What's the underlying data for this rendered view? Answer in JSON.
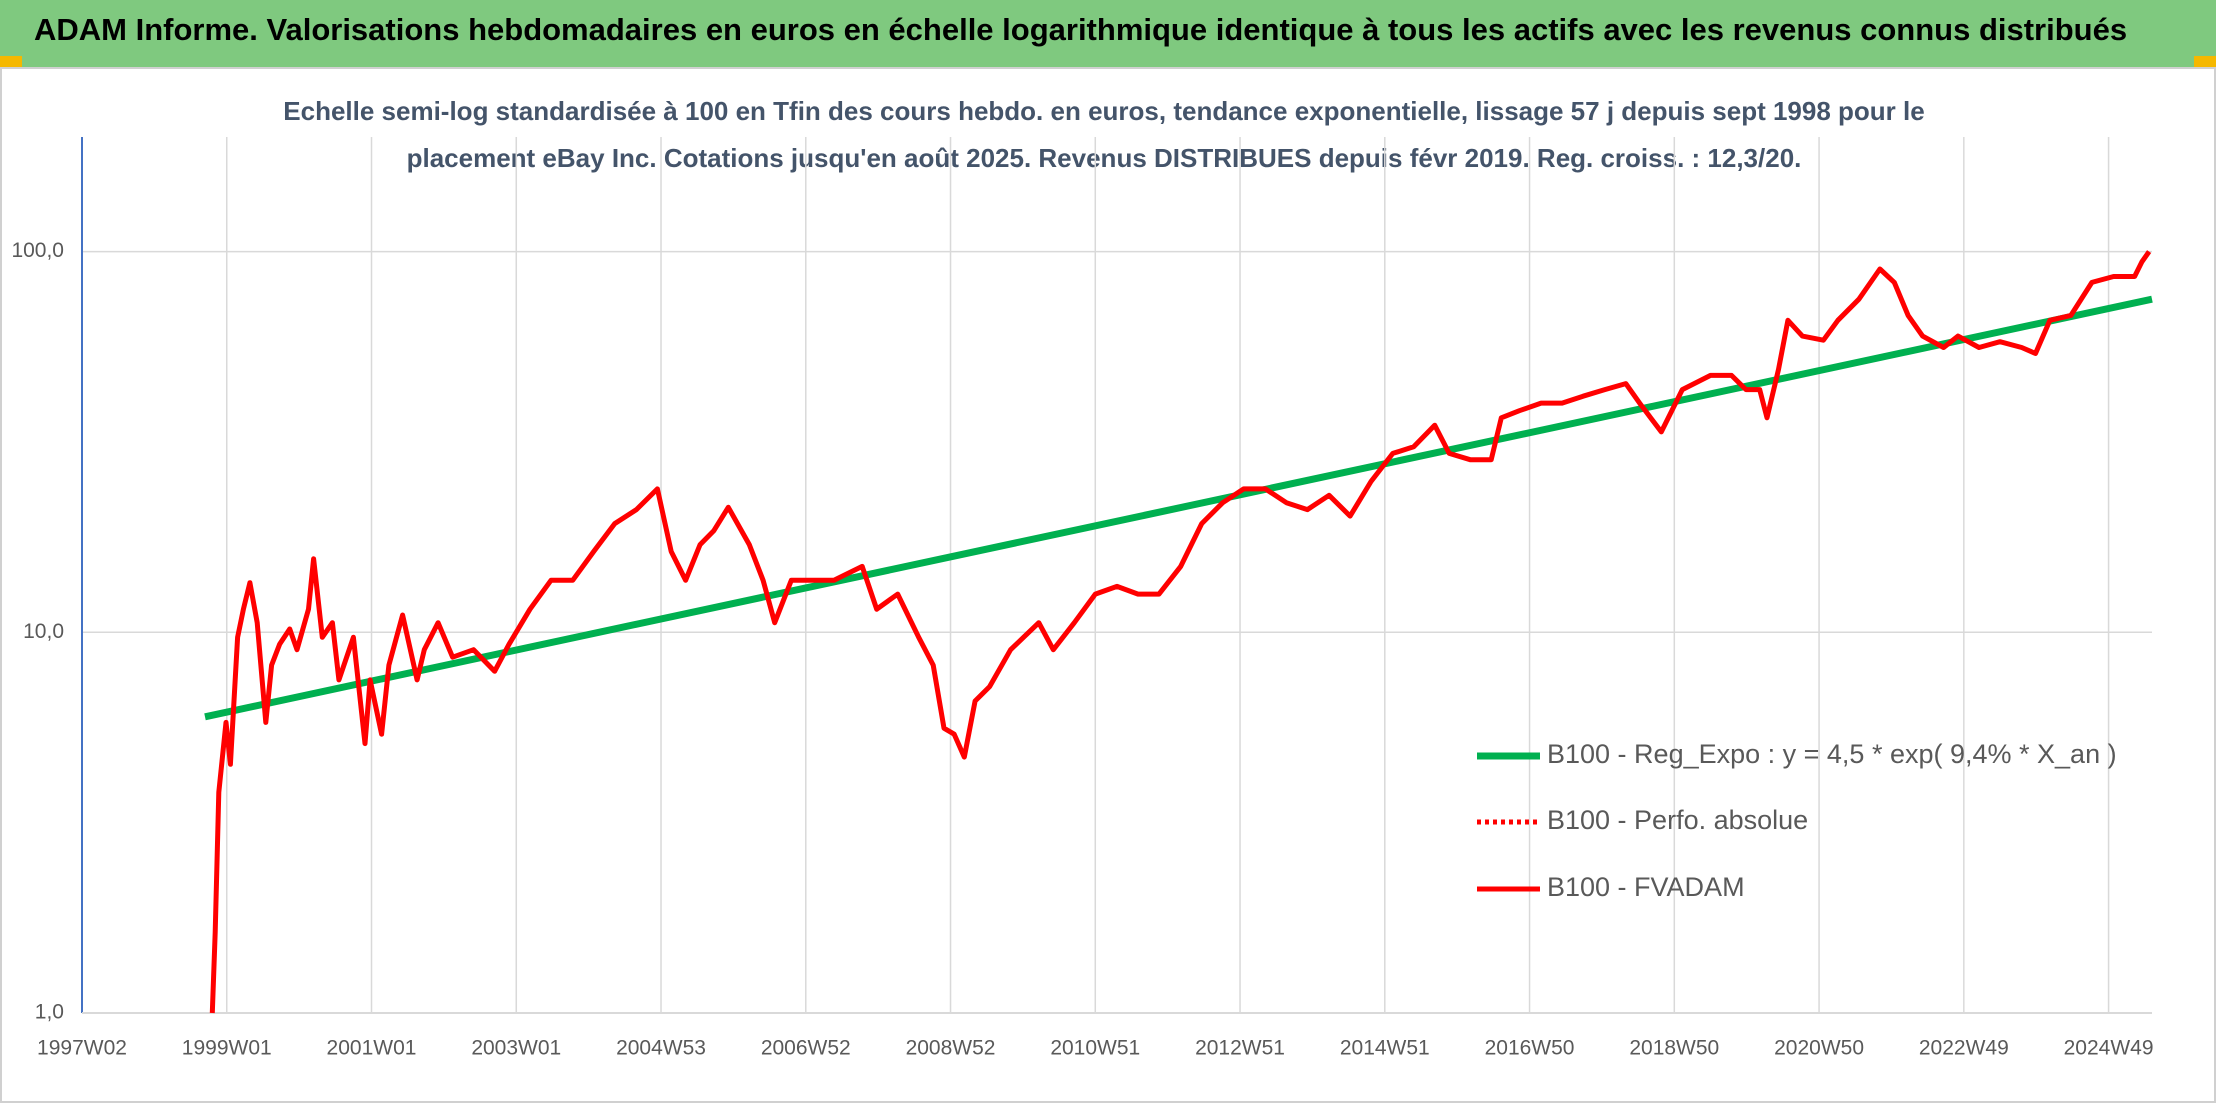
{
  "chart_data": {
    "type": "line",
    "title": "ADAM Informe. Valorisations hebdomadaires en euros en échelle logarithmique identique à tous les actifs avec les revenus connus distribués",
    "subtitle": [
      "Echelle semi-log standardisée à 100 en Tfin des cours hebdo. en euros, tendance exponentielle, lissage 57 j depuis sept 1998 pour le",
      "placement eBay Inc. Cotations jusqu'en août 2025. Revenus DISTRIBUES depuis févr 2019. Reg. croiss. : 12,3/20."
    ],
    "xlim": [
      1997.0,
      2025.6
    ],
    "xticks": [
      {
        "value": 1997.0,
        "label": "1997W02"
      },
      {
        "value": 1999.0,
        "label": "1999W01"
      },
      {
        "value": 2001.0,
        "label": "2001W01"
      },
      {
        "value": 2003.0,
        "label": "2003W01"
      },
      {
        "value": 2005.0,
        "label": "2004W53"
      },
      {
        "value": 2007.0,
        "label": "2006W52"
      },
      {
        "value": 2009.0,
        "label": "2008W52"
      },
      {
        "value": 2011.0,
        "label": "2010W51"
      },
      {
        "value": 2013.0,
        "label": "2012W51"
      },
      {
        "value": 2015.0,
        "label": "2014W51"
      },
      {
        "value": 2017.0,
        "label": "2016W50"
      },
      {
        "value": 2019.0,
        "label": "2018W50"
      },
      {
        "value": 2021.0,
        "label": "2020W50"
      },
      {
        "value": 2023.0,
        "label": "2022W49"
      },
      {
        "value": 2025.0,
        "label": "2024W49"
      }
    ],
    "ylim": [
      1,
      200
    ],
    "yticks": [
      {
        "value": 1,
        "label": "1,0"
      },
      {
        "value": 10,
        "label": "10,0"
      },
      {
        "value": 100,
        "label": "100,0"
      }
    ],
    "log_scale_y": true,
    "grid": true,
    "series": [
      {
        "name": "B100 - Reg_Expo : y = 4,5 * exp( 9,4% *  X_an )",
        "color": "#00b050",
        "line_style": "solid",
        "x": [
          1998.7,
          2025.6
        ],
        "values": [
          6.0,
          75
        ]
      },
      {
        "name": "B100 - Perfo. absolue",
        "color": "#ff0000",
        "line_style": "dotted",
        "x": [],
        "values": []
      },
      {
        "name": "B100 - FVADAM",
        "color": "#ff0000",
        "line_style": "solid",
        "x": [
          1998.8,
          1998.84,
          1998.89,
          1998.99,
          1999.05,
          1999.15,
          1999.23,
          1999.32,
          1999.42,
          1999.54,
          1999.62,
          1999.73,
          1999.87,
          1999.97,
          2000.13,
          2000.2,
          2000.32,
          2000.46,
          2000.55,
          2000.75,
          2000.91,
          2000.98,
          2001.14,
          2001.24,
          2001.43,
          2001.63,
          2001.73,
          2001.92,
          2002.12,
          2002.41,
          2002.7,
          2002.9,
          2003.19,
          2003.48,
          2003.78,
          2004.07,
          2004.36,
          2004.66,
          2004.95,
          2005.14,
          2005.34,
          2005.54,
          2005.73,
          2005.93,
          2006.22,
          2006.41,
          2006.57,
          2006.8,
          2007.1,
          2007.39,
          2007.78,
          2007.98,
          2008.27,
          2008.56,
          2008.76,
          2008.91,
          2009.05,
          2009.19,
          2009.34,
          2009.54,
          2009.83,
          2010.22,
          2010.42,
          2010.71,
          2011.0,
          2011.3,
          2011.59,
          2011.88,
          2012.18,
          2012.47,
          2012.76,
          2013.05,
          2013.35,
          2013.64,
          2013.93,
          2014.23,
          2014.52,
          2014.81,
          2015.11,
          2015.4,
          2015.69,
          2015.89,
          2016.18,
          2016.47,
          2016.61,
          2016.86,
          2017.16,
          2017.45,
          2017.74,
          2018.04,
          2018.33,
          2018.52,
          2018.82,
          2019.11,
          2019.5,
          2019.79,
          2019.99,
          2020.18,
          2020.28,
          2020.44,
          2020.57,
          2020.77,
          2021.06,
          2021.26,
          2021.55,
          2021.84,
          2022.04,
          2022.23,
          2022.43,
          2022.72,
          2022.92,
          2023.21,
          2023.5,
          2023.8,
          2023.99,
          2024.19,
          2024.48,
          2024.77,
          2025.07,
          2025.36,
          2025.46,
          2025.56
        ],
        "values": [
          1.0,
          1.63,
          3.8,
          5.8,
          4.5,
          9.7,
          11.5,
          13.5,
          10.6,
          5.8,
          8.2,
          9.3,
          10.2,
          9.0,
          11.5,
          15.6,
          9.7,
          10.6,
          7.5,
          9.7,
          5.1,
          7.5,
          5.4,
          8.2,
          11.1,
          7.5,
          9.0,
          10.6,
          8.6,
          9.0,
          7.9,
          9.3,
          11.5,
          13.7,
          13.7,
          16.3,
          19.3,
          21,
          23.8,
          16.3,
          13.7,
          17,
          18.5,
          21.3,
          17,
          13.7,
          10.6,
          13.7,
          13.7,
          13.7,
          14.9,
          11.5,
          12.6,
          9.7,
          8.2,
          5.6,
          5.4,
          4.7,
          6.6,
          7.2,
          9.0,
          10.6,
          9.0,
          10.6,
          12.6,
          13.2,
          12.6,
          12.6,
          14.9,
          19.3,
          21.9,
          23.8,
          23.8,
          21.9,
          21.0,
          22.9,
          20.2,
          24.9,
          29.5,
          30.7,
          35,
          29.5,
          28.4,
          28.4,
          36.6,
          38.2,
          40,
          40,
          41.7,
          43.4,
          45,
          40,
          33.6,
          43.4,
          47.3,
          47.3,
          43.4,
          43.4,
          36.6,
          49,
          66,
          60,
          58.5,
          66,
          75,
          90,
          83,
          68,
          60,
          56,
          60,
          56,
          58,
          56,
          54,
          66,
          68,
          83,
          86,
          86,
          94,
          100
        ]
      }
    ]
  }
}
